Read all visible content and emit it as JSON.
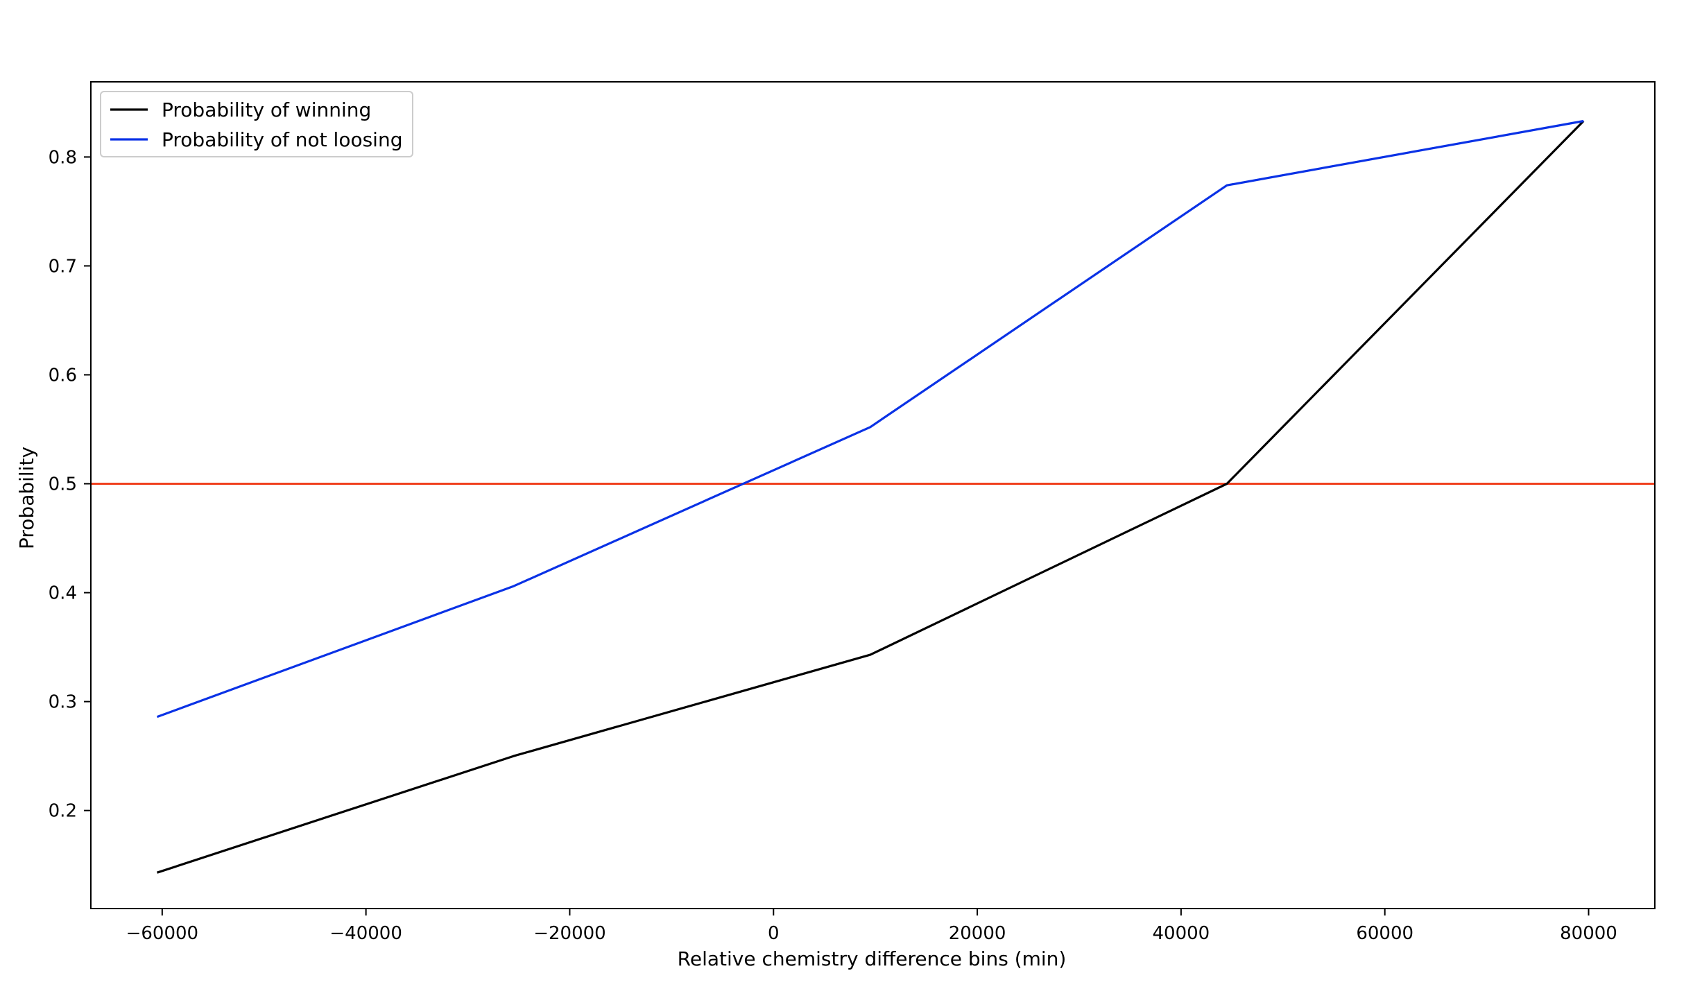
{
  "chart_data": {
    "type": "line",
    "title": "",
    "xlabel": "Relative chemistry difference bins (min)",
    "ylabel": "Probability",
    "xlim": [
      -67000,
      86500
    ],
    "ylim": [
      0.11,
      0.869
    ],
    "xticks": [
      -60000,
      -40000,
      -20000,
      0,
      20000,
      40000,
      60000,
      80000
    ],
    "xtick_labels": [
      "−60000",
      "−40000",
      "−20000",
      "0",
      "20000",
      "40000",
      "60000",
      "80000"
    ],
    "yticks": [
      0.2,
      0.3,
      0.4,
      0.5,
      0.6,
      0.7,
      0.8
    ],
    "ytick_labels": [
      "0.2",
      "0.3",
      "0.4",
      "0.5",
      "0.6",
      "0.7",
      "0.8"
    ],
    "grid": false,
    "legend_position": "top-left",
    "series": [
      {
        "name": "Probability of winning",
        "color": "#000000",
        "x": [
          -60500,
          -25500,
          9500,
          44500,
          79500
        ],
        "y": [
          0.143,
          0.25,
          0.343,
          0.5,
          0.833
        ]
      },
      {
        "name": "Probability of not loosing",
        "color": "#0a32e6",
        "x": [
          -60500,
          -25500,
          9500,
          44500,
          79500
        ],
        "y": [
          0.286,
          0.406,
          0.552,
          0.774,
          0.833
        ]
      }
    ],
    "reference_lines": [
      {
        "orientation": "horizontal",
        "y": 0.5,
        "color": "#f0401e"
      }
    ]
  }
}
